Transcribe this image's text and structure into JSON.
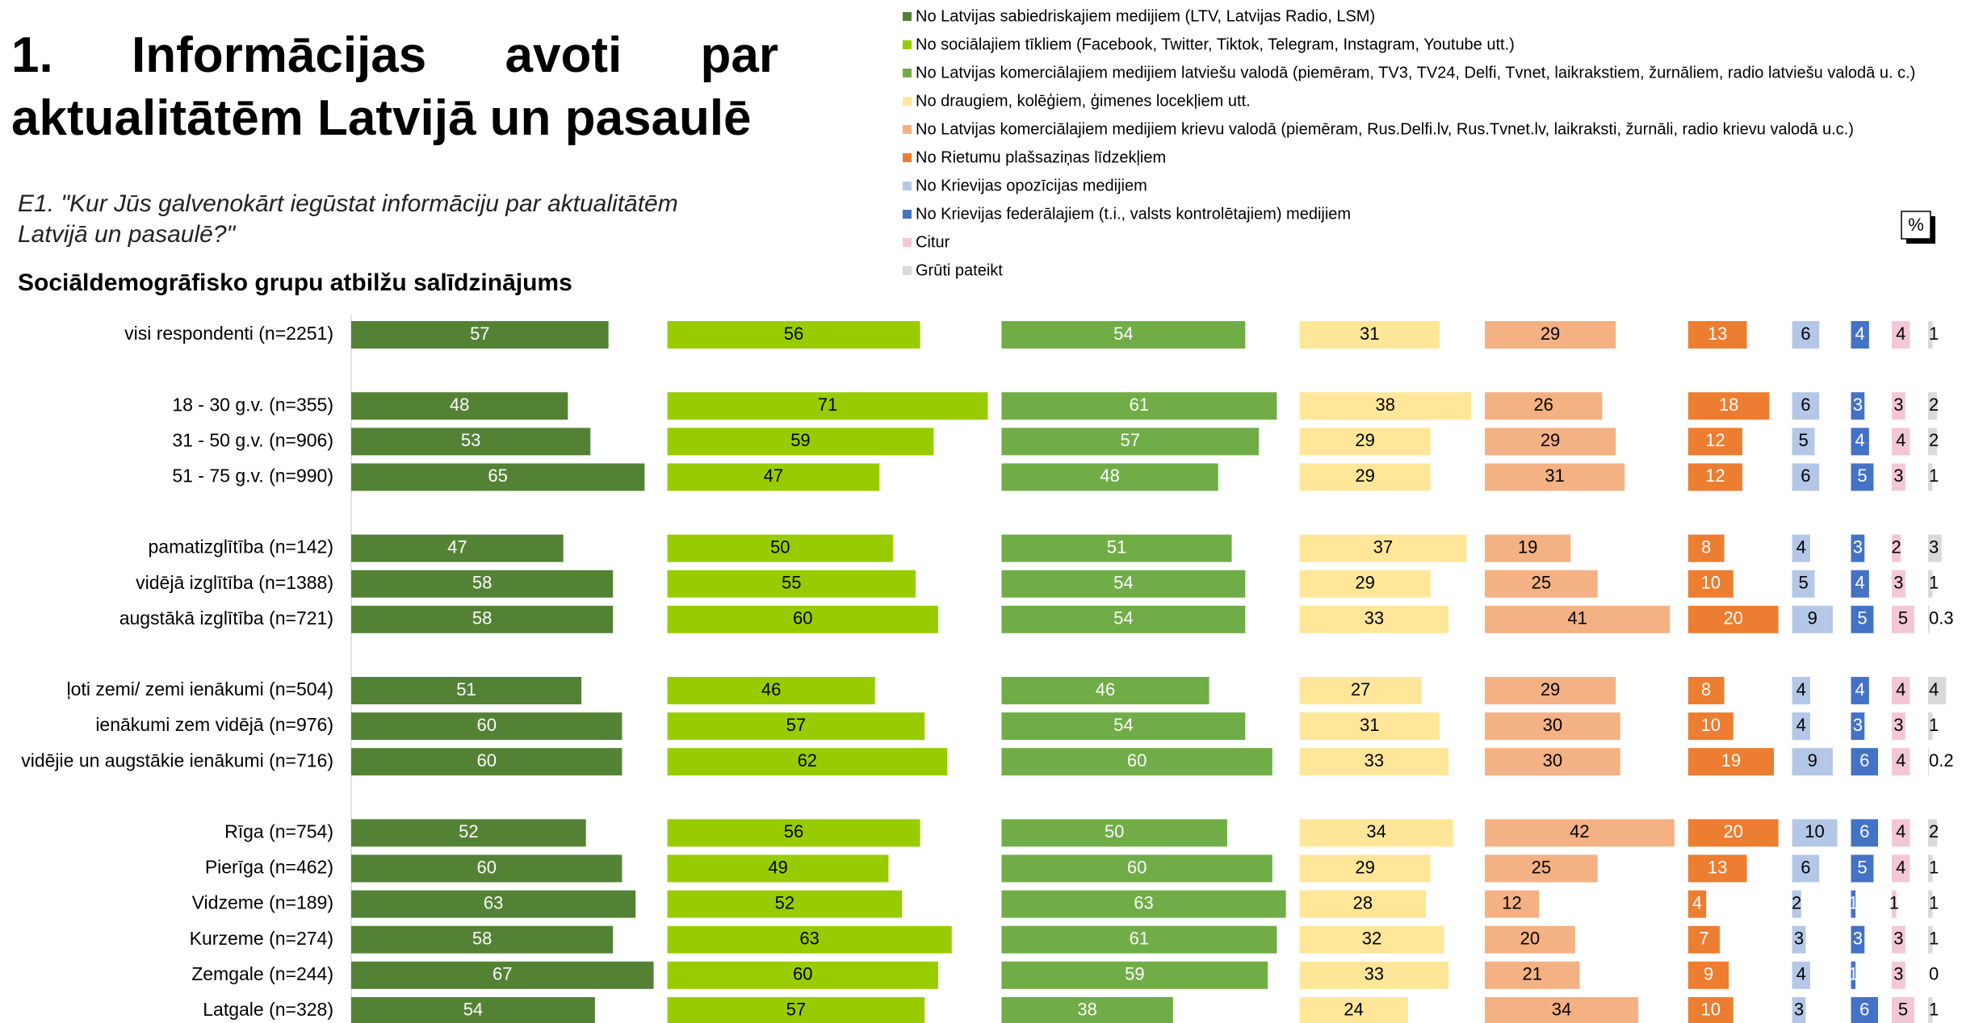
{
  "chart_data": {
    "type": "bar",
    "orientation": "horizontal",
    "title": "1. Informācijas avoti par aktualitātēm Latvijā un pasaulē",
    "question": "E1. \"Kur Jūs galvenokārt iegūstat informāciju par aktualitātēm Latvijā un pasaulē?\"",
    "subtitle": "Sociāldemogrāfisko grupu atbilžu salīdzinājums",
    "unit_label": "%",
    "categories": [
      "visi respondenti (n=2251)",
      null,
      "18 - 30 g.v. (n=355)",
      "31 - 50 g.v. (n=906)",
      "51 - 75 g.v. (n=990)",
      null,
      "pamatizglītība (n=142)",
      "vidējā izglītība (n=1388)",
      "augstākā izglītība (n=721)",
      null,
      "ļoti zemi/ zemi ienākumi (n=504)",
      "ienākumi zem vidējā (n=976)",
      "vidējie un augstākie ienākumi (n=716)",
      null,
      "Rīga (n=754)",
      "Pierīga (n=462)",
      "Vidzeme (n=189)",
      "Kurzeme (n=274)",
      "Zemgale (n=244)",
      "Latgale (n=328)"
    ],
    "series": [
      {
        "name": "No Latvijas sabiedriskajiem medijiem (LTV, Latvijas Radio, LSM)",
        "color": "#548235",
        "values": [
          57,
          null,
          48,
          53,
          65,
          null,
          47,
          58,
          58,
          null,
          51,
          60,
          60,
          null,
          52,
          60,
          63,
          58,
          67,
          54
        ]
      },
      {
        "name": "No sociālajiem tīkliem (Facebook, Twitter, Tiktok, Telegram, Instagram, Youtube utt.)",
        "color": "#99cc00",
        "values": [
          56,
          null,
          71,
          59,
          47,
          null,
          50,
          55,
          60,
          null,
          46,
          57,
          62,
          null,
          56,
          49,
          52,
          63,
          60,
          57
        ]
      },
      {
        "name": "No Latvijas komerciālajiem medijiem latviešu valodā (piemēram, TV3, TV24, Delfi, Tvnet, laikrakstiem, žurnāliem, radio latviešu valodā u. c.)",
        "color": "#70ad47",
        "values": [
          54,
          null,
          61,
          57,
          48,
          null,
          51,
          54,
          54,
          null,
          46,
          54,
          60,
          null,
          50,
          60,
          63,
          61,
          59,
          38
        ]
      },
      {
        "name": "No draugiem, kolēģiem, ģimenes locekļiem utt.",
        "color": "#ffe699",
        "values": [
          31,
          null,
          38,
          29,
          29,
          null,
          37,
          29,
          33,
          null,
          27,
          31,
          33,
          null,
          34,
          29,
          28,
          32,
          33,
          24
        ]
      },
      {
        "name": "No Latvijas komerciālajiem medijiem krievu valodā (piemēram, Rus.Delfi.lv, Rus.Tvnet.lv, laikraksti, žurnāli, radio krievu valodā u.c.)",
        "color": "#f4b183",
        "values": [
          29,
          null,
          26,
          29,
          31,
          null,
          19,
          25,
          41,
          null,
          29,
          30,
          30,
          null,
          42,
          25,
          12,
          20,
          21,
          34
        ]
      },
      {
        "name": "No Rietumu plašsaziņas līdzekļiem",
        "color": "#ed7d31",
        "values": [
          13,
          null,
          18,
          12,
          12,
          null,
          8,
          10,
          20,
          null,
          8,
          10,
          19,
          null,
          20,
          13,
          4,
          7,
          9,
          10
        ]
      },
      {
        "name": "No Krievijas opozīcijas medijiem",
        "color": "#b4c7e7",
        "values": [
          6,
          null,
          6,
          5,
          6,
          null,
          4,
          5,
          9,
          null,
          4,
          4,
          9,
          null,
          10,
          6,
          2,
          3,
          4,
          3
        ]
      },
      {
        "name": "No Krievijas federālajiem (t.i., valsts kontrolētajiem) medijiem",
        "color": "#4472c4",
        "values": [
          4,
          null,
          3,
          4,
          5,
          null,
          3,
          4,
          5,
          null,
          4,
          3,
          6,
          null,
          6,
          5,
          1,
          3,
          1,
          6
        ]
      },
      {
        "name": "Citur",
        "color": "#f4c7d7",
        "values": [
          4,
          null,
          3,
          4,
          3,
          null,
          2,
          3,
          5,
          null,
          4,
          3,
          4,
          null,
          4,
          4,
          1,
          3,
          3,
          5
        ]
      },
      {
        "name": "Grūti pateikt",
        "color": "#d9d9d9",
        "values": [
          1,
          null,
          2,
          2,
          1,
          null,
          3,
          1,
          0.3,
          null,
          4,
          1,
          0.2,
          null,
          2,
          1,
          1,
          1,
          0,
          1
        ]
      }
    ]
  }
}
